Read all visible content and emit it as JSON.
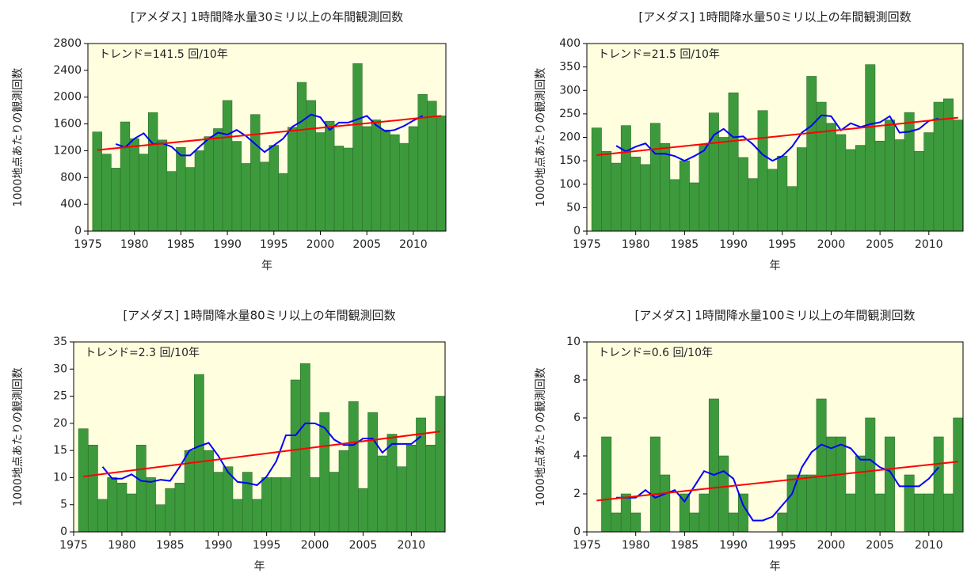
{
  "chart_data": [
    {
      "type": "bar",
      "title": "[アメダス] 1時間降水量30ミリ以上の年間観測回数",
      "annotation": "トレンド=141.5 回/10年",
      "xlabel": "年",
      "ylabel": "1000地点あたりの観測回数",
      "x": [
        1976,
        1977,
        1978,
        1979,
        1980,
        1981,
        1982,
        1983,
        1984,
        1985,
        1986,
        1987,
        1988,
        1989,
        1990,
        1991,
        1992,
        1993,
        1994,
        1995,
        1996,
        1997,
        1998,
        1999,
        2000,
        2001,
        2002,
        2003,
        2004,
        2005,
        2006,
        2007,
        2008,
        2009,
        2010,
        2011,
        2012,
        2013
      ],
      "values": [
        1480,
        1150,
        940,
        1630,
        1380,
        1150,
        1770,
        1360,
        890,
        1250,
        950,
        1200,
        1410,
        1530,
        1950,
        1340,
        1010,
        1740,
        1030,
        1280,
        860,
        1550,
        2220,
        1950,
        1470,
        1640,
        1270,
        1240,
        2500,
        1560,
        1660,
        1510,
        1440,
        1310,
        1560,
        2040,
        1940,
        1720
      ],
      "moving_average": [
        null,
        null,
        1300,
        1250,
        1380,
        1460,
        1300,
        1310,
        1260,
        1130,
        1130,
        1260,
        1380,
        1470,
        1440,
        1510,
        1420,
        1300,
        1180,
        1280,
        1380,
        1560,
        1640,
        1740,
        1700,
        1510,
        1620,
        1620,
        1670,
        1720,
        1580,
        1490,
        1510,
        1570,
        1650,
        1720,
        null,
        null
      ],
      "trend": {
        "x": [
          1976,
          2013
        ],
        "values": [
          1210,
          1720
        ]
      },
      "color": "#3c9a3c",
      "ma_color": "#0000ff",
      "trend_color": "#ff0000",
      "xlim": [
        1975,
        2013.5
      ],
      "xticks": [
        1975,
        1980,
        1985,
        1990,
        1995,
        2000,
        2005,
        2010
      ],
      "ylim": [
        0,
        2800
      ],
      "yticks": [
        0,
        400,
        800,
        1200,
        1600,
        2000,
        2400,
        2800
      ]
    },
    {
      "type": "bar",
      "title": "[アメダス] 1時間降水量50ミリ以上の年間観測回数",
      "annotation": "トレンド=21.5 回/10年",
      "xlabel": "年",
      "ylabel": "1000地点あたりの観測回数",
      "x": [
        1976,
        1977,
        1978,
        1979,
        1980,
        1981,
        1982,
        1983,
        1984,
        1985,
        1986,
        1987,
        1988,
        1989,
        1990,
        1991,
        1992,
        1993,
        1994,
        1995,
        1996,
        1997,
        1998,
        1999,
        2000,
        2001,
        2002,
        2003,
        2004,
        2005,
        2006,
        2007,
        2008,
        2009,
        2010,
        2011,
        2012,
        2013
      ],
      "values": [
        220,
        170,
        145,
        225,
        158,
        142,
        230,
        187,
        110,
        150,
        103,
        185,
        252,
        200,
        295,
        157,
        112,
        257,
        132,
        160,
        95,
        178,
        330,
        275,
        230,
        206,
        174,
        183,
        355,
        192,
        237,
        195,
        253,
        170,
        210,
        275,
        282,
        237
      ],
      "moving_average": [
        null,
        null,
        182,
        170,
        180,
        187,
        165,
        165,
        160,
        150,
        160,
        172,
        205,
        218,
        200,
        202,
        185,
        163,
        150,
        160,
        180,
        210,
        225,
        247,
        245,
        215,
        230,
        222,
        228,
        232,
        245,
        210,
        212,
        218,
        235,
        240,
        null,
        null
      ],
      "trend": {
        "x": [
          1976,
          2013
        ],
        "values": [
          162,
          242
        ]
      },
      "color": "#3c9a3c",
      "ma_color": "#0000ff",
      "trend_color": "#ff0000",
      "xlim": [
        1975,
        2013.5
      ],
      "xticks": [
        1975,
        1980,
        1985,
        1990,
        1995,
        2000,
        2005,
        2010
      ],
      "ylim": [
        0,
        400
      ],
      "yticks": [
        0,
        50,
        100,
        150,
        200,
        250,
        300,
        350,
        400
      ]
    },
    {
      "type": "bar",
      "title": "[アメダス] 1時間降水量80ミリ以上の年間観測回数",
      "annotation": "トレンド=2.3 回/10年",
      "xlabel": "年",
      "ylabel": "1000地点あたりの観測回数",
      "x": [
        1976,
        1977,
        1978,
        1979,
        1980,
        1981,
        1982,
        1983,
        1984,
        1985,
        1986,
        1987,
        1988,
        1989,
        1990,
        1991,
        1992,
        1993,
        1994,
        1995,
        1996,
        1997,
        1998,
        1999,
        2000,
        2001,
        2002,
        2003,
        2004,
        2005,
        2006,
        2007,
        2008,
        2009,
        2010,
        2011,
        2012,
        2013
      ],
      "values": [
        19,
        16,
        6,
        10,
        9,
        7,
        16,
        10,
        5,
        8,
        9,
        15,
        29,
        15,
        11,
        12,
        6,
        11,
        6,
        10,
        10,
        10,
        28,
        31,
        10,
        22,
        11,
        15,
        24,
        8,
        22,
        14,
        18,
        12,
        16,
        21,
        16,
        25
      ],
      "moving_average": [
        null,
        null,
        12,
        9.8,
        9.8,
        10.6,
        9.4,
        9.2,
        9.6,
        9.4,
        12,
        15,
        15.8,
        16.4,
        14,
        11,
        9.2,
        9,
        8.6,
        10.2,
        13,
        17.8,
        17.8,
        20,
        20,
        19.2,
        17,
        16,
        16,
        17.2,
        17.2,
        14.6,
        16.2,
        16.2,
        16.2,
        17.6,
        null,
        null
      ],
      "trend": {
        "x": [
          1976,
          2013
        ],
        "values": [
          10.2,
          18.5
        ]
      },
      "color": "#3c9a3c",
      "ma_color": "#0000ff",
      "trend_color": "#ff0000",
      "xlim": [
        1975,
        2013.5
      ],
      "xticks": [
        1975,
        1980,
        1985,
        1990,
        1995,
        2000,
        2005,
        2010
      ],
      "ylim": [
        0,
        35
      ],
      "yticks": [
        0,
        5,
        10,
        15,
        20,
        25,
        30,
        35
      ]
    },
    {
      "type": "bar",
      "title": "[アメダス] 1時間降水量100ミリ以上の年間観測回数",
      "annotation": "トレンド=0.6 回/10年",
      "xlabel": "年",
      "ylabel": "1000地点あたりの観測回数",
      "x": [
        1976,
        1977,
        1978,
        1979,
        1980,
        1981,
        1982,
        1983,
        1984,
        1985,
        1986,
        1987,
        1988,
        1989,
        1990,
        1991,
        1992,
        1993,
        1994,
        1995,
        1996,
        1997,
        1998,
        1999,
        2000,
        2001,
        2002,
        2003,
        2004,
        2005,
        2006,
        2007,
        2008,
        2009,
        2010,
        2011,
        2012,
        2013
      ],
      "values": [
        0,
        5,
        1,
        2,
        1,
        0,
        5,
        3,
        0,
        2,
        1,
        2,
        7,
        4,
        1,
        2,
        0,
        0,
        0,
        1,
        3,
        3,
        3,
        7,
        5,
        5,
        2,
        4,
        6,
        2,
        5,
        0,
        3,
        2,
        2,
        5,
        2,
        6
      ],
      "moving_average": [
        null,
        null,
        1.8,
        1.8,
        1.8,
        2.2,
        1.8,
        2,
        2.2,
        1.6,
        2.4,
        3.2,
        3,
        3.2,
        2.8,
        1.4,
        0.6,
        0.6,
        0.8,
        1.4,
        2,
        3.4,
        4.2,
        4.6,
        4.4,
        4.6,
        4.4,
        3.8,
        3.8,
        3.4,
        3.2,
        2.4,
        2.4,
        2.4,
        2.8,
        3.4,
        null,
        null
      ],
      "trend": {
        "x": [
          1976,
          2013
        ],
        "values": [
          1.65,
          3.7
        ]
      },
      "color": "#3c9a3c",
      "ma_color": "#0000ff",
      "trend_color": "#ff0000",
      "xlim": [
        1975,
        2013.5
      ],
      "xticks": [
        1975,
        1980,
        1985,
        1990,
        1995,
        2000,
        2005,
        2010
      ],
      "ylim": [
        0,
        10
      ],
      "yticks": [
        0,
        2,
        4,
        6,
        8,
        10
      ]
    }
  ]
}
